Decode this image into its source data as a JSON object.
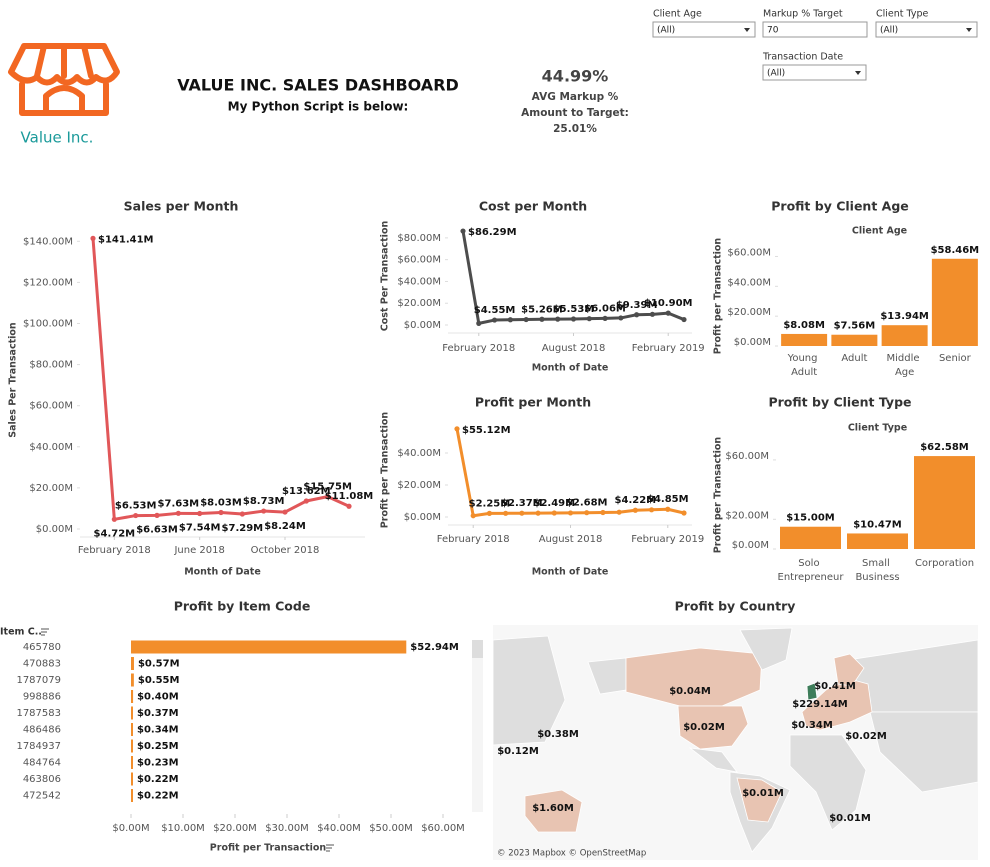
{
  "header": {
    "logo_text": "Value Inc.",
    "title": "VALUE INC. SALES DASHBOARD",
    "subtitle": "My Python Script is below:"
  },
  "kpi": {
    "value": "44.99%",
    "label": "AVG Markup %",
    "target_label": "Amount to Target:",
    "target_value": "25.01%"
  },
  "filters": [
    {
      "label": "Client Age",
      "value": "(All)"
    },
    {
      "label": "Markup % Target",
      "value": "70"
    },
    {
      "label": "Client Type",
      "value": "(All)"
    },
    {
      "label": "Transaction Date",
      "value": "(All)"
    }
  ],
  "chart_data": [
    {
      "type": "line",
      "title": "Sales per Month",
      "x_label": "Month of Date",
      "y_label": "Sales Per Transaction",
      "categories": [
        "2018-01",
        "2018-02",
        "2018-03",
        "2018-04",
        "2018-05",
        "2018-06",
        "2018-07",
        "2018-08",
        "2018-09",
        "2018-10",
        "2018-11",
        "2018-12",
        "2019-01"
      ],
      "values": [
        141.41,
        4.72,
        6.53,
        6.63,
        7.63,
        7.54,
        8.03,
        7.29,
        8.73,
        8.24,
        13.62,
        15.75,
        11.08
      ],
      "value_labels": [
        "$141.41M",
        "$4.72M",
        "$6.53M",
        "$6.63M",
        "$7.63M",
        "$7.54M",
        "$8.03M",
        "$7.29M",
        "$8.73M",
        "$8.24M",
        "$13.62M",
        "$15.75M",
        "$11.08M"
      ],
      "color": "#e15759",
      "ylim": [
        0,
        145
      ],
      "yticks": [
        {
          "value": 0,
          "label": "$0.00M"
        },
        {
          "value": 20,
          "label": "$20.00M"
        },
        {
          "value": 40,
          "label": "$40.00M"
        },
        {
          "value": 60,
          "label": "$60.00M"
        },
        {
          "value": 80,
          "label": "$80.00M"
        },
        {
          "value": 100,
          "label": "$100.00M"
        },
        {
          "value": 120,
          "label": "$120.00M"
        },
        {
          "value": 140,
          "label": "$140.00M"
        }
      ],
      "xticks": [
        {
          "value": "2018-02",
          "label": "February 2018"
        },
        {
          "value": "2018-06",
          "label": "June 2018"
        },
        {
          "value": "2018-10",
          "label": "October 2018"
        }
      ],
      "grid": false
    },
    {
      "type": "line",
      "title": "Cost per Month",
      "x_label": "Month of Date",
      "y_label": "Cost Per Transaction",
      "categories": [
        "2018-01",
        "2018-02",
        "2018-03",
        "2018-04",
        "2018-05",
        "2018-06",
        "2018-07",
        "2018-08",
        "2018-09",
        "2018-10",
        "2018-11",
        "2018-12",
        "2019-01",
        "2019-02",
        "2019-03"
      ],
      "values": [
        86.29,
        1.5,
        4.55,
        4.8,
        5.0,
        5.26,
        5.4,
        5.53,
        5.8,
        6.06,
        6.5,
        9.39,
        9.8,
        10.9,
        5.0
      ],
      "value_labels": [
        "$86.29M",
        null,
        "$4.55M",
        null,
        null,
        "$5.26M",
        null,
        "$5.53M",
        null,
        "$6.06M",
        null,
        "$9.39M",
        null,
        "$10.90M",
        null
      ],
      "color": "#4d4d4d",
      "ylim": [
        0,
        90
      ],
      "yticks": [
        {
          "value": 0,
          "label": "$0.00M"
        },
        {
          "value": 20,
          "label": "$20.00M"
        },
        {
          "value": 40,
          "label": "$40.00M"
        },
        {
          "value": 60,
          "label": "$60.00M"
        },
        {
          "value": 80,
          "label": "$80.00M"
        }
      ],
      "xticks": [
        {
          "value": "2018-02",
          "label": "February 2018"
        },
        {
          "value": "2018-08",
          "label": "August 2018"
        },
        {
          "value": "2019-02",
          "label": "February 2019"
        }
      ],
      "grid": false
    },
    {
      "type": "line",
      "title": "Profit per Month",
      "x_label": "Month of Date",
      "y_label": "Profit per Transaction",
      "categories": [
        "2018-01",
        "2018-02",
        "2018-03",
        "2018-04",
        "2018-05",
        "2018-06",
        "2018-07",
        "2018-08",
        "2018-09",
        "2018-10",
        "2018-11",
        "2018-12",
        "2019-01",
        "2019-02",
        "2019-03"
      ],
      "values": [
        55.12,
        0.8,
        2.25,
        2.3,
        2.37,
        2.4,
        2.49,
        2.55,
        2.68,
        2.8,
        3.0,
        4.22,
        4.5,
        4.85,
        2.5
      ],
      "value_labels": [
        "$55.12M",
        null,
        "$2.25M",
        null,
        "$2.37M",
        null,
        "$2.49M",
        null,
        "$2.68M",
        null,
        null,
        "$4.22M",
        null,
        "$4.85M",
        null
      ],
      "color": "#f28e2b",
      "ylim": [
        0,
        60
      ],
      "yticks": [
        {
          "value": 0,
          "label": "$0.00M"
        },
        {
          "value": 20,
          "label": "$20.00M"
        },
        {
          "value": 40,
          "label": "$40.00M"
        }
      ],
      "xticks": [
        {
          "value": "2018-02",
          "label": "February 2018"
        },
        {
          "value": "2018-08",
          "label": "August 2018"
        },
        {
          "value": "2019-02",
          "label": "February 2019"
        }
      ],
      "grid": false
    },
    {
      "type": "bar",
      "title": "Profit by Client Age",
      "x_header": "Client Age",
      "y_label": "Profit per Transaction",
      "categories": [
        "Young Adult",
        "Adult",
        "Middle Age",
        "Senior"
      ],
      "values": [
        8.08,
        7.56,
        13.94,
        58.46
      ],
      "value_labels": [
        "$8.08M",
        "$7.56M",
        "$13.94M",
        "$58.46M"
      ],
      "color": "#f28e2b",
      "ylim": [
        0,
        63
      ],
      "yticks": [
        {
          "value": 0,
          "label": "$0.00M"
        },
        {
          "value": 20,
          "label": "$20.00M"
        },
        {
          "value": 40,
          "label": "$40.00M"
        },
        {
          "value": 60,
          "label": "$60.00M"
        }
      ],
      "grid": false
    },
    {
      "type": "bar",
      "title": "Profit by Client Type",
      "x_header": "Client Type",
      "y_label": "Profit per Transaction",
      "categories": [
        "Solo Entrepreneur",
        "Small Business",
        "Corporation"
      ],
      "values": [
        15.0,
        10.47,
        62.58
      ],
      "value_labels": [
        "$15.00M",
        "$10.47M",
        "$62.58M"
      ],
      "color": "#f28e2b",
      "ylim": [
        0,
        66
      ],
      "yticks": [
        {
          "value": 0,
          "label": "$0.00M"
        },
        {
          "value": 20,
          "label": "$20.00M"
        },
        {
          "value": 60,
          "label": "$60.00M"
        }
      ],
      "grid": false
    },
    {
      "type": "hbar",
      "title": "Profit by Item Code",
      "category_header": "Item C..",
      "x_label": "Profit per Transaction",
      "categories": [
        "465780",
        "470883",
        "1787079",
        "998886",
        "1787583",
        "486486",
        "1784937",
        "484764",
        "463806",
        "472542"
      ],
      "values": [
        52.94,
        0.57,
        0.55,
        0.4,
        0.37,
        0.34,
        0.25,
        0.23,
        0.22,
        0.22
      ],
      "value_labels": [
        "$52.94M",
        "$0.57M",
        "$0.55M",
        "$0.40M",
        "$0.37M",
        "$0.34M",
        "$0.25M",
        "$0.23M",
        "$0.22M",
        "$0.22M"
      ],
      "color": "#f28e2b",
      "xlim": [
        0,
        65
      ],
      "xticks": [
        {
          "value": 0,
          "label": "$0.00M"
        },
        {
          "value": 10,
          "label": "$10.00M"
        },
        {
          "value": 20,
          "label": "$20.00M"
        },
        {
          "value": 30,
          "label": "$30.00M"
        },
        {
          "value": 40,
          "label": "$40.00M"
        },
        {
          "value": 50,
          "label": "$50.00M"
        },
        {
          "value": 60,
          "label": "$60.00M"
        }
      ],
      "grid": false
    }
  ],
  "map": {
    "title": "Profit by Country",
    "attribution": "© 2023 Mapbox © OpenStreetMap",
    "labels": [
      "$0.04M",
      "$0.41M",
      "$229.14M",
      "$0.34M",
      "$0.02M",
      "$0.02M",
      "$0.38M",
      "$0.12M",
      "$1.60M",
      "$0.01M",
      "$0.01M"
    ]
  }
}
